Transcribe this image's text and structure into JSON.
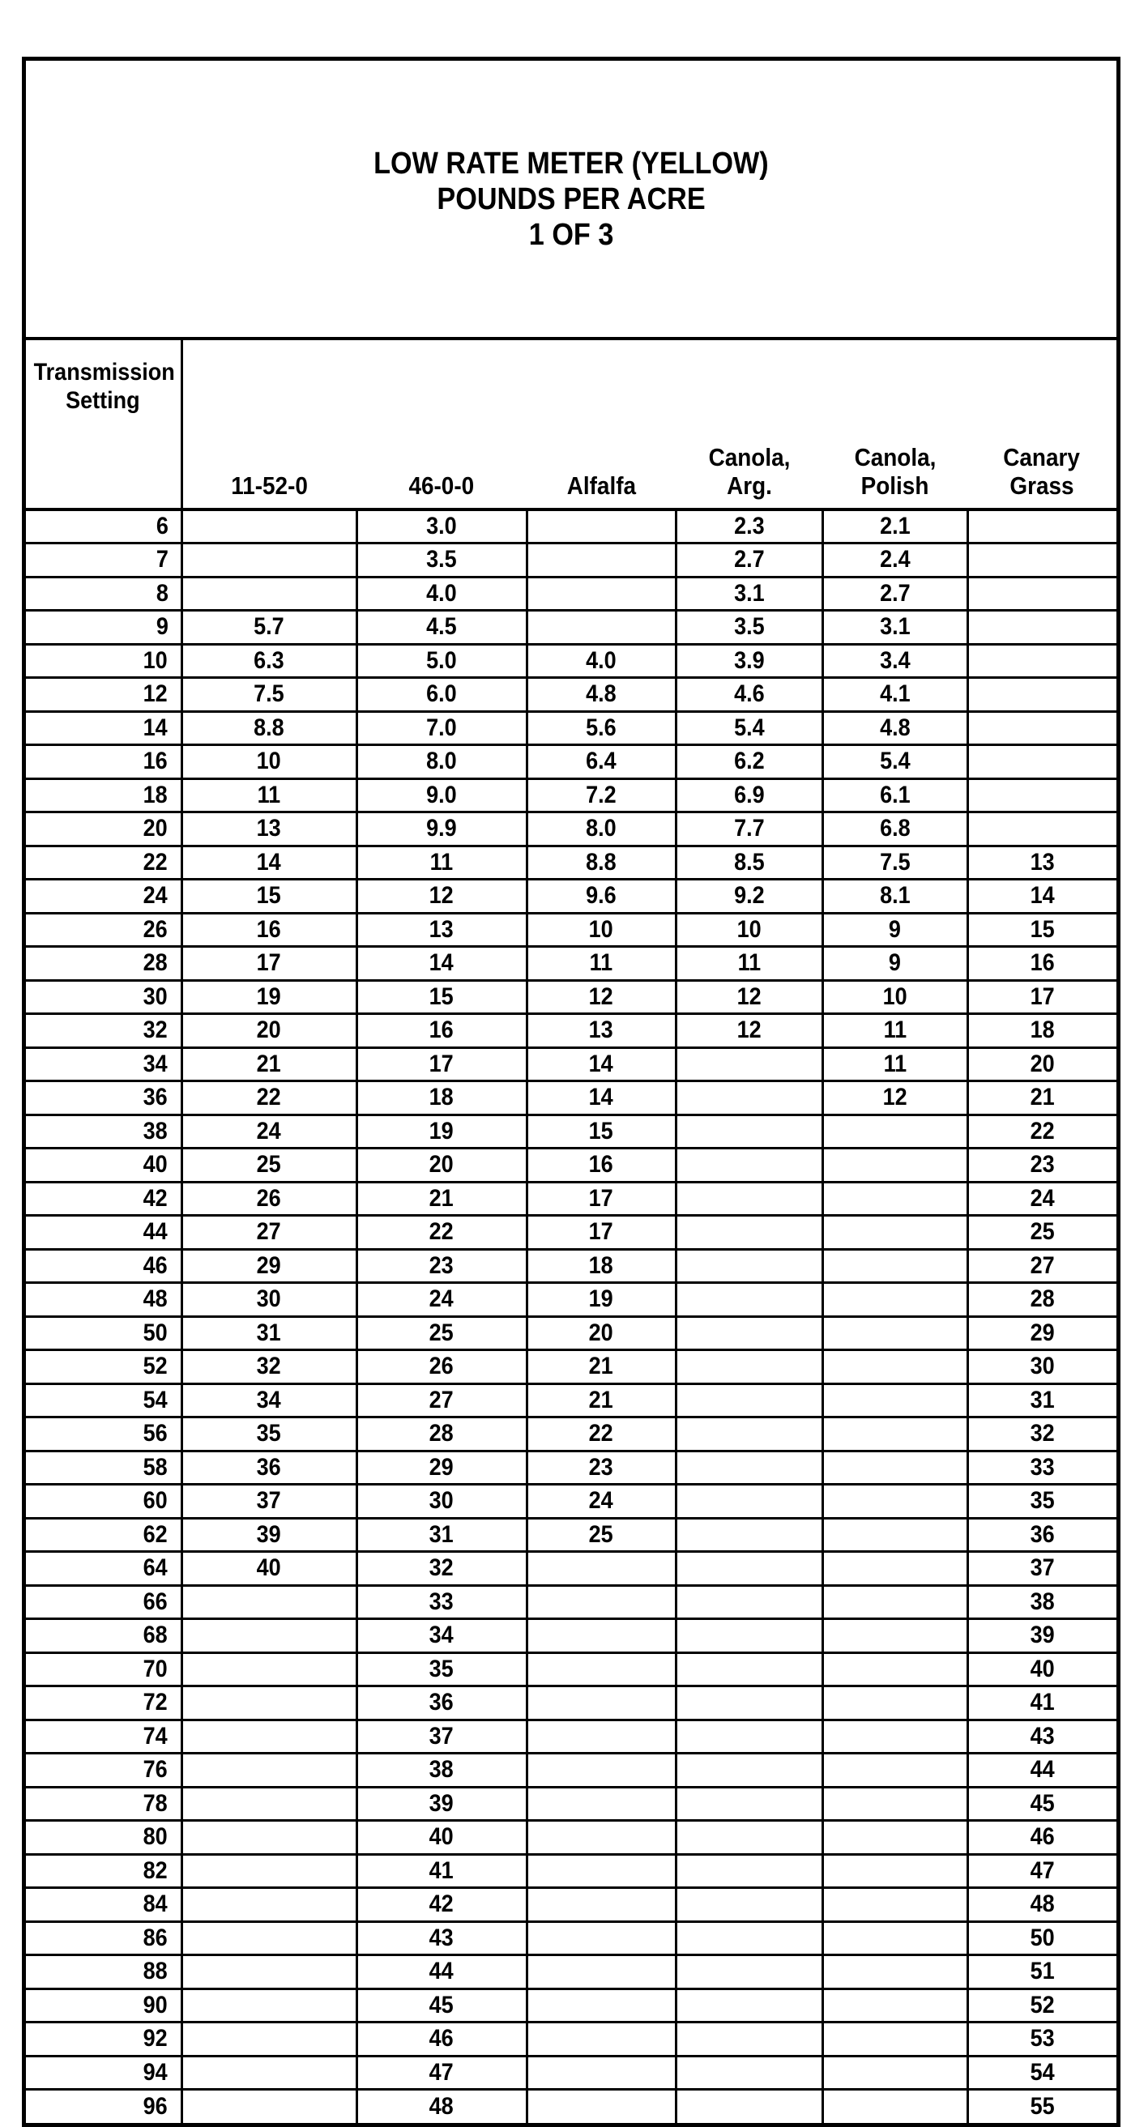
{
  "title": {
    "line1": "LOW RATE METER (YELLOW)",
    "line2": "POUNDS PER ACRE",
    "line3": "1 OF 3"
  },
  "columns": [
    [
      "Transmission",
      "Setting"
    ],
    [
      "",
      "11-52-0"
    ],
    [
      "",
      "46-0-0"
    ],
    [
      "",
      "Alfalfa"
    ],
    [
      "Canola,",
      "Arg."
    ],
    [
      "Canola,",
      "Polish"
    ],
    [
      "Canary",
      "Grass"
    ]
  ],
  "rows": [
    [
      "6",
      "",
      "3.0",
      "",
      "2.3",
      "2.1",
      ""
    ],
    [
      "7",
      "",
      "3.5",
      "",
      "2.7",
      "2.4",
      ""
    ],
    [
      "8",
      "",
      "4.0",
      "",
      "3.1",
      "2.7",
      ""
    ],
    [
      "9",
      "5.7",
      "4.5",
      "",
      "3.5",
      "3.1",
      ""
    ],
    [
      "10",
      "6.3",
      "5.0",
      "4.0",
      "3.9",
      "3.4",
      ""
    ],
    [
      "12",
      "7.5",
      "6.0",
      "4.8",
      "4.6",
      "4.1",
      ""
    ],
    [
      "14",
      "8.8",
      "7.0",
      "5.6",
      "5.4",
      "4.8",
      ""
    ],
    [
      "16",
      "10",
      "8.0",
      "6.4",
      "6.2",
      "5.4",
      ""
    ],
    [
      "18",
      "11",
      "9.0",
      "7.2",
      "6.9",
      "6.1",
      ""
    ],
    [
      "20",
      "13",
      "9.9",
      "8.0",
      "7.7",
      "6.8",
      ""
    ],
    [
      "22",
      "14",
      "11",
      "8.8",
      "8.5",
      "7.5",
      "13"
    ],
    [
      "24",
      "15",
      "12",
      "9.6",
      "9.2",
      "8.1",
      "14"
    ],
    [
      "26",
      "16",
      "13",
      "10",
      "10",
      "9",
      "15"
    ],
    [
      "28",
      "17",
      "14",
      "11",
      "11",
      "9",
      "16"
    ],
    [
      "30",
      "19",
      "15",
      "12",
      "12",
      "10",
      "17"
    ],
    [
      "32",
      "20",
      "16",
      "13",
      "12",
      "11",
      "18"
    ],
    [
      "34",
      "21",
      "17",
      "14",
      "",
      "11",
      "20"
    ],
    [
      "36",
      "22",
      "18",
      "14",
      "",
      "12",
      "21"
    ],
    [
      "38",
      "24",
      "19",
      "15",
      "",
      "",
      "22"
    ],
    [
      "40",
      "25",
      "20",
      "16",
      "",
      "",
      "23"
    ],
    [
      "42",
      "26",
      "21",
      "17",
      "",
      "",
      "24"
    ],
    [
      "44",
      "27",
      "22",
      "17",
      "",
      "",
      "25"
    ],
    [
      "46",
      "29",
      "23",
      "18",
      "",
      "",
      "27"
    ],
    [
      "48",
      "30",
      "24",
      "19",
      "",
      "",
      "28"
    ],
    [
      "50",
      "31",
      "25",
      "20",
      "",
      "",
      "29"
    ],
    [
      "52",
      "32",
      "26",
      "21",
      "",
      "",
      "30"
    ],
    [
      "54",
      "34",
      "27",
      "21",
      "",
      "",
      "31"
    ],
    [
      "56",
      "35",
      "28",
      "22",
      "",
      "",
      "32"
    ],
    [
      "58",
      "36",
      "29",
      "23",
      "",
      "",
      "33"
    ],
    [
      "60",
      "37",
      "30",
      "24",
      "",
      "",
      "35"
    ],
    [
      "62",
      "39",
      "31",
      "25",
      "",
      "",
      "36"
    ],
    [
      "64",
      "40",
      "32",
      "",
      "",
      "",
      "37"
    ],
    [
      "66",
      "",
      "33",
      "",
      "",
      "",
      "38"
    ],
    [
      "68",
      "",
      "34",
      "",
      "",
      "",
      "39"
    ],
    [
      "70",
      "",
      "35",
      "",
      "",
      "",
      "40"
    ],
    [
      "72",
      "",
      "36",
      "",
      "",
      "",
      "41"
    ],
    [
      "74",
      "",
      "37",
      "",
      "",
      "",
      "43"
    ],
    [
      "76",
      "",
      "38",
      "",
      "",
      "",
      "44"
    ],
    [
      "78",
      "",
      "39",
      "",
      "",
      "",
      "45"
    ],
    [
      "80",
      "",
      "40",
      "",
      "",
      "",
      "46"
    ],
    [
      "82",
      "",
      "41",
      "",
      "",
      "",
      "47"
    ],
    [
      "84",
      "",
      "42",
      "",
      "",
      "",
      "48"
    ],
    [
      "86",
      "",
      "43",
      "",
      "",
      "",
      "50"
    ],
    [
      "88",
      "",
      "44",
      "",
      "",
      "",
      "51"
    ],
    [
      "90",
      "",
      "45",
      "",
      "",
      "",
      "52"
    ],
    [
      "92",
      "",
      "46",
      "",
      "",
      "",
      "53"
    ],
    [
      "94",
      "",
      "47",
      "",
      "",
      "",
      "54"
    ],
    [
      "96",
      "",
      "48",
      "",
      "",
      "",
      "55"
    ]
  ]
}
